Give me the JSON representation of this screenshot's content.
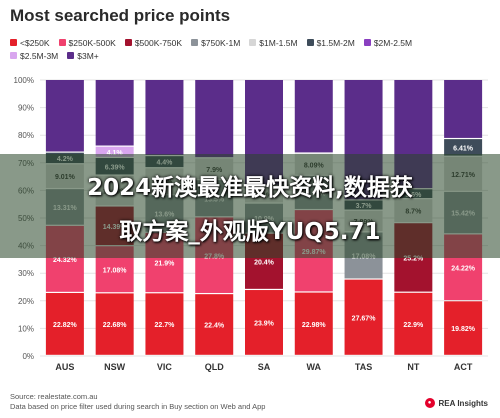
{
  "title": "Most searched price points",
  "legend": [
    {
      "label": "<$250K",
      "color": "#e4202a"
    },
    {
      "label": "$250K-500K",
      "color": "#f0416e"
    },
    {
      "label": "$500K-750K",
      "color": "#a3122e"
    },
    {
      "label": "$750K-1M",
      "color": "#8c9299"
    },
    {
      "label": "$1M-1.5M",
      "color": "#d6d6d6"
    },
    {
      "label": "$1.5M-2M",
      "color": "#3e4c5a"
    },
    {
      "label": "$2M-2.5M",
      "color": "#8a3fc0"
    },
    {
      "label": "$2.5M-3M",
      "color": "#d9a6ef"
    },
    {
      "label": "$3M+",
      "color": "#5b2d8a"
    }
  ],
  "chart_data": {
    "type": "bar",
    "stacked": true,
    "categories": [
      "AUS",
      "NSW",
      "VIC",
      "QLD",
      "SA",
      "WA",
      "TAS",
      "NT",
      "ACT"
    ],
    "ylim": [
      0,
      100
    ],
    "yticks": [
      "0%",
      "10%",
      "20%",
      "30%",
      "40%",
      "50%",
      "60%",
      "70%",
      "80%",
      "90%",
      "100%"
    ],
    "series": [
      {
        "name": "<$250K",
        "values": [
          22.82,
          22.68,
          22.7,
          22.4,
          23.9,
          22.98,
          27.67,
          22.9,
          19.82
        ]
      },
      {
        "name": "$250K-500K",
        "values": [
          24.32,
          17.08,
          21.9,
          27.8,
          null,
          29.87,
          null,
          null,
          24.22
        ]
      },
      {
        "name": "$500K-750K",
        "values": [
          null,
          14.39,
          null,
          null,
          20.4,
          null,
          null,
          25.2,
          null
        ]
      },
      {
        "name": "$750K-1M",
        "values": [
          13.31,
          null,
          13.6,
          13.5,
          10.9,
          12.39,
          17.08,
          null,
          15.42
        ]
      },
      {
        "name": "$1M-1.5M",
        "values": [
          9.01,
          11.19,
          9.8,
          7.9,
          6.4,
          8.09,
          7.89,
          8.7,
          12.71
        ]
      },
      {
        "name": "$1.5M-2M",
        "values": [
          4.2,
          6.39,
          4.4,
          null,
          null,
          null,
          3.7,
          3.6,
          6.41
        ]
      },
      {
        "name": "$2M-2.5M",
        "values": [
          null,
          null,
          null,
          null,
          null,
          null,
          null,
          null,
          null
        ]
      },
      {
        "name": "$2.5M-3M",
        "values": [
          null,
          4.1,
          null,
          null,
          null,
          null,
          null,
          null,
          null
        ]
      },
      {
        "name": "$3M+",
        "values": [
          null,
          null,
          null,
          null,
          null,
          null,
          null,
          null,
          null
        ]
      }
    ]
  },
  "watermark": {
    "line1": "2024新澳最准最快资料,数据获",
    "line2": "取方案_外观版YUQ5.71"
  },
  "footer": {
    "source": "Source: realestate.com.au",
    "note": "Data based on price filter used during search in Buy section on Web and App",
    "brand": "REA Insights"
  }
}
